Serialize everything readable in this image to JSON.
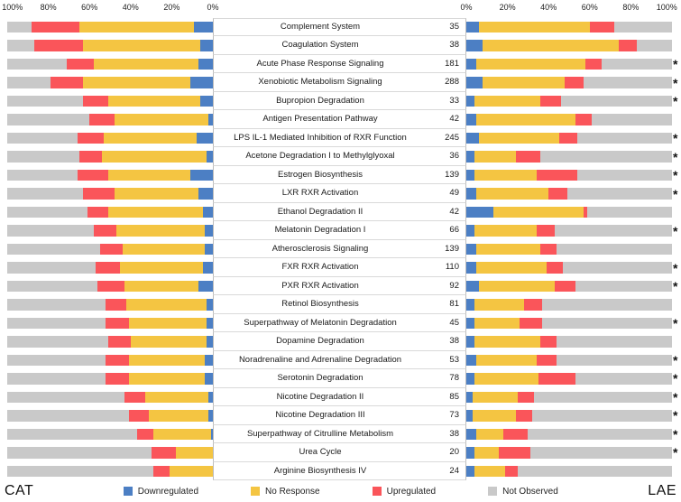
{
  "axes": {
    "left_ticks": [
      "100%",
      "80%",
      "60%",
      "40%",
      "20%",
      "0%"
    ],
    "right_ticks": [
      "0%",
      "20%",
      "40%",
      "60%",
      "80%",
      "100%"
    ]
  },
  "colors": {
    "downregulated": "#4C7FC4",
    "no_response": "#F4C542",
    "upregulated": "#FA555A",
    "not_observed": "#C9C9C9"
  },
  "legend": [
    {
      "label": "Downregulated",
      "color_key": "downregulated"
    },
    {
      "label": "No Response",
      "color_key": "no_response"
    },
    {
      "label": "Upregulated",
      "color_key": "upregulated"
    },
    {
      "label": "Not Observed",
      "color_key": "not_observed"
    }
  ],
  "chart_data": {
    "type": "bar",
    "subtype": "diverging-100-percent-stacked-horizontal",
    "groups": [
      "CAT",
      "LAE"
    ],
    "significance_marker": "*",
    "axis_range_percent": [
      0,
      100
    ],
    "axis_tick_step_percent": 20,
    "stack_order_left": [
      "not_observed",
      "upregulated",
      "no_response",
      "downregulated"
    ],
    "stack_order_right": [
      "downregulated",
      "no_response",
      "upregulated",
      "not_observed"
    ],
    "series_names": [
      "Downregulated",
      "No Response",
      "Upregulated",
      "Not Observed"
    ],
    "rows": [
      {
        "pathway": "Complement System",
        "count": 35,
        "star": false,
        "cat": {
          "downregulated": 9,
          "no_response": 56,
          "upregulated": 23,
          "not_observed": 12
        },
        "lae": {
          "downregulated": 6,
          "no_response": 54,
          "upregulated": 12,
          "not_observed": 28
        }
      },
      {
        "pathway": "Coagulation System",
        "count": 38,
        "star": false,
        "cat": {
          "downregulated": 6,
          "no_response": 57,
          "upregulated": 24,
          "not_observed": 13
        },
        "lae": {
          "downregulated": 8,
          "no_response": 66,
          "upregulated": 9,
          "not_observed": 17
        }
      },
      {
        "pathway": "Acute Phase Response Signaling",
        "count": 181,
        "star": true,
        "cat": {
          "downregulated": 7,
          "no_response": 51,
          "upregulated": 13,
          "not_observed": 29
        },
        "lae": {
          "downregulated": 5,
          "no_response": 53,
          "upregulated": 8,
          "not_observed": 34
        }
      },
      {
        "pathway": "Xenobiotic Metabolism Signaling",
        "count": 288,
        "star": true,
        "cat": {
          "downregulated": 11,
          "no_response": 52,
          "upregulated": 16,
          "not_observed": 21
        },
        "lae": {
          "downregulated": 8,
          "no_response": 40,
          "upregulated": 9,
          "not_observed": 43
        }
      },
      {
        "pathway": "Bupropion Degradation",
        "count": 33,
        "star": true,
        "cat": {
          "downregulated": 6,
          "no_response": 45,
          "upregulated": 12,
          "not_observed": 37
        },
        "lae": {
          "downregulated": 4,
          "no_response": 32,
          "upregulated": 10,
          "not_observed": 54
        }
      },
      {
        "pathway": "Antigen Presentation Pathway",
        "count": 42,
        "star": false,
        "cat": {
          "downregulated": 2,
          "no_response": 46,
          "upregulated": 12,
          "not_observed": 40
        },
        "lae": {
          "downregulated": 5,
          "no_response": 48,
          "upregulated": 8,
          "not_observed": 39
        }
      },
      {
        "pathway": "LPS IL-1 Mediated Inhibition of RXR Function",
        "count": 245,
        "star": true,
        "cat": {
          "downregulated": 8,
          "no_response": 45,
          "upregulated": 13,
          "not_observed": 34
        },
        "lae": {
          "downregulated": 6,
          "no_response": 39,
          "upregulated": 9,
          "not_observed": 46
        }
      },
      {
        "pathway": "Acetone Degradation I to Methylglyoxal",
        "count": 36,
        "star": true,
        "cat": {
          "downregulated": 3,
          "no_response": 51,
          "upregulated": 11,
          "not_observed": 35
        },
        "lae": {
          "downregulated": 4,
          "no_response": 20,
          "upregulated": 12,
          "not_observed": 64
        }
      },
      {
        "pathway": "Estrogen Biosynthesis",
        "count": 139,
        "star": true,
        "cat": {
          "downregulated": 11,
          "no_response": 40,
          "upregulated": 15,
          "not_observed": 34
        },
        "lae": {
          "downregulated": 4,
          "no_response": 30,
          "upregulated": 20,
          "not_observed": 46
        }
      },
      {
        "pathway": "LXR RXR Activation",
        "count": 49,
        "star": true,
        "cat": {
          "downregulated": 7,
          "no_response": 41,
          "upregulated": 15,
          "not_observed": 37
        },
        "lae": {
          "downregulated": 5,
          "no_response": 35,
          "upregulated": 9,
          "not_observed": 51
        }
      },
      {
        "pathway": "Ethanol Degradation II",
        "count": 42,
        "star": false,
        "cat": {
          "downregulated": 5,
          "no_response": 46,
          "upregulated": 10,
          "not_observed": 39
        },
        "lae": {
          "downregulated": 13,
          "no_response": 44,
          "upregulated": 2,
          "not_observed": 41
        }
      },
      {
        "pathway": "Melatonin Degradation I",
        "count": 66,
        "star": true,
        "cat": {
          "downregulated": 4,
          "no_response": 43,
          "upregulated": 11,
          "not_observed": 42
        },
        "lae": {
          "downregulated": 4,
          "no_response": 30,
          "upregulated": 9,
          "not_observed": 57
        }
      },
      {
        "pathway": "Atherosclerosis Signaling",
        "count": 139,
        "star": false,
        "cat": {
          "downregulated": 4,
          "no_response": 40,
          "upregulated": 11,
          "not_observed": 45
        },
        "lae": {
          "downregulated": 5,
          "no_response": 31,
          "upregulated": 8,
          "not_observed": 56
        }
      },
      {
        "pathway": "FXR RXR Activation",
        "count": 110,
        "star": true,
        "cat": {
          "downregulated": 5,
          "no_response": 40,
          "upregulated": 12,
          "not_observed": 43
        },
        "lae": {
          "downregulated": 5,
          "no_response": 34,
          "upregulated": 8,
          "not_observed": 53
        }
      },
      {
        "pathway": "PXR RXR Activation",
        "count": 92,
        "star": true,
        "cat": {
          "downregulated": 7,
          "no_response": 36,
          "upregulated": 13,
          "not_observed": 44
        },
        "lae": {
          "downregulated": 6,
          "no_response": 37,
          "upregulated": 10,
          "not_observed": 47
        }
      },
      {
        "pathway": "Retinol Biosynthesis",
        "count": 81,
        "star": false,
        "cat": {
          "downregulated": 3,
          "no_response": 39,
          "upregulated": 10,
          "not_observed": 48
        },
        "lae": {
          "downregulated": 4,
          "no_response": 24,
          "upregulated": 9,
          "not_observed": 63
        }
      },
      {
        "pathway": "Superpathway of Melatonin Degradation",
        "count": 45,
        "star": true,
        "cat": {
          "downregulated": 3,
          "no_response": 38,
          "upregulated": 11,
          "not_observed": 48
        },
        "lae": {
          "downregulated": 4,
          "no_response": 22,
          "upregulated": 11,
          "not_observed": 63
        }
      },
      {
        "pathway": "Dopamine Degradation",
        "count": 38,
        "star": false,
        "cat": {
          "downregulated": 3,
          "no_response": 37,
          "upregulated": 11,
          "not_observed": 49
        },
        "lae": {
          "downregulated": 4,
          "no_response": 32,
          "upregulated": 8,
          "not_observed": 56
        }
      },
      {
        "pathway": "Noradrenaline and Adrenaline Degradation",
        "count": 53,
        "star": true,
        "cat": {
          "downregulated": 4,
          "no_response": 37,
          "upregulated": 11,
          "not_observed": 48
        },
        "lae": {
          "downregulated": 5,
          "no_response": 29,
          "upregulated": 10,
          "not_observed": 56
        }
      },
      {
        "pathway": "Serotonin Degradation",
        "count": 78,
        "star": true,
        "cat": {
          "downregulated": 4,
          "no_response": 37,
          "upregulated": 11,
          "not_observed": 48
        },
        "lae": {
          "downregulated": 4,
          "no_response": 31,
          "upregulated": 18,
          "not_observed": 47
        }
      },
      {
        "pathway": "Nicotine Degradation II",
        "count": 85,
        "star": true,
        "cat": {
          "downregulated": 2,
          "no_response": 31,
          "upregulated": 10,
          "not_observed": 57
        },
        "lae": {
          "downregulated": 3,
          "no_response": 22,
          "upregulated": 8,
          "not_observed": 67
        }
      },
      {
        "pathway": "Nicotine Degradation III",
        "count": 73,
        "star": true,
        "cat": {
          "downregulated": 2,
          "no_response": 29,
          "upregulated": 10,
          "not_observed": 59
        },
        "lae": {
          "downregulated": 3,
          "no_response": 21,
          "upregulated": 8,
          "not_observed": 68
        }
      },
      {
        "pathway": "Superpathway of Citrulline Metabolism",
        "count": 38,
        "star": true,
        "cat": {
          "downregulated": 1,
          "no_response": 28,
          "upregulated": 8,
          "not_observed": 63
        },
        "lae": {
          "downregulated": 5,
          "no_response": 13,
          "upregulated": 12,
          "not_observed": 70
        }
      },
      {
        "pathway": "Urea Cycle",
        "count": 20,
        "star": true,
        "cat": {
          "downregulated": 0,
          "no_response": 18,
          "upregulated": 12,
          "not_observed": 70
        },
        "lae": {
          "downregulated": 4,
          "no_response": 12,
          "upregulated": 15,
          "not_observed": 69
        }
      },
      {
        "pathway": "Arginine Biosynthesis IV",
        "count": 24,
        "star": false,
        "cat": {
          "downregulated": 0,
          "no_response": 21,
          "upregulated": 8,
          "not_observed": 71
        },
        "lae": {
          "downregulated": 4,
          "no_response": 15,
          "upregulated": 6,
          "not_observed": 75
        }
      }
    ]
  }
}
